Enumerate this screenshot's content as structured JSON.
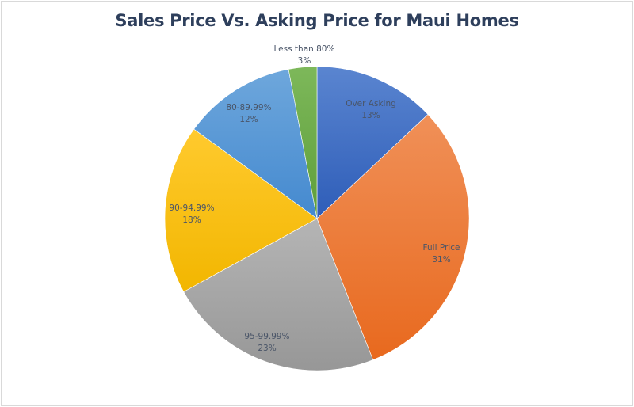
{
  "chart_data": {
    "type": "pie",
    "title": "Sales Price Vs. Asking Price for Maui Homes",
    "categories": [
      "Over Asking",
      "Full Price",
      "95-99.99%",
      "90-94.99%",
      "80-89.99%",
      "Less than 80%"
    ],
    "values": [
      13,
      31,
      23,
      18,
      12,
      3
    ],
    "unit": "%",
    "colors": [
      "#4472c4",
      "#ed7d31",
      "#a5a5a5",
      "#ffc000",
      "#5b9bd5",
      "#70ad47"
    ],
    "start_angle": "12 o'clock",
    "direction": "clockwise",
    "legend": "none",
    "data_labels": [
      {
        "name": "Over Asking",
        "pct": "13%"
      },
      {
        "name": "Full Price",
        "pct": "31%"
      },
      {
        "name": "95-99.99%",
        "pct": "23%"
      },
      {
        "name": "90-94.99%",
        "pct": "18%"
      },
      {
        "name": "80-89.99%",
        "pct": "12%"
      },
      {
        "name": "Less than 80%",
        "pct": "3%"
      }
    ]
  }
}
